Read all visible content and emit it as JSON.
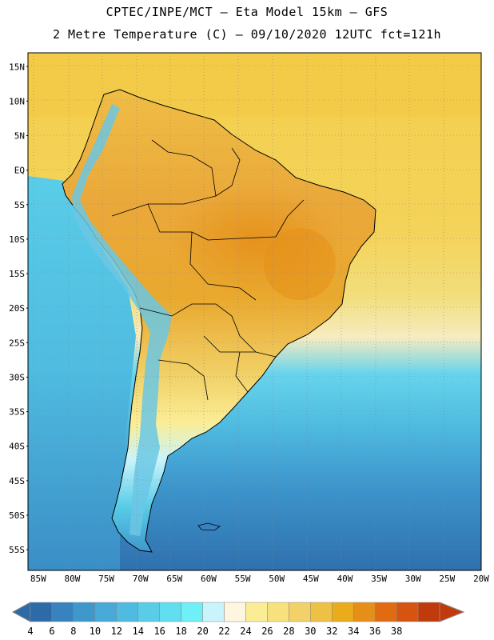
{
  "header": {
    "line1": "CPTEC/INPE/MCT –  Eta Model 15km – GFS",
    "line2": "2 Metre Temperature (C) – 09/10/2020 12UTC fct=121h"
  },
  "map": {
    "lat_labels": [
      "15N",
      "10N",
      "5N",
      "EQ",
      "5S",
      "10S",
      "15S",
      "20S",
      "25S",
      "30S",
      "35S",
      "40S",
      "45S",
      "50S",
      "55S"
    ],
    "lon_labels": [
      "85W",
      "80W",
      "75W",
      "70W",
      "65W",
      "60W",
      "55W",
      "50W",
      "45W",
      "40W",
      "35W",
      "30W",
      "25W",
      "20W"
    ],
    "lat_range": [
      -58,
      17
    ],
    "lon_range": [
      -86.5,
      -20
    ]
  },
  "colorbar": {
    "labels": [
      "4",
      "6",
      "8",
      "10",
      "12",
      "14",
      "16",
      "18",
      "20",
      "22",
      "24",
      "26",
      "28",
      "30",
      "32",
      "34",
      "36",
      "38"
    ],
    "colors": [
      "#2c6aa8",
      "#3683bf",
      "#3f98cc",
      "#47aad8",
      "#4fbbe0",
      "#59cde8",
      "#61def0",
      "#6ff0f7",
      "#c9f4fb",
      "#fff6e0",
      "#fbed96",
      "#f7e17c",
      "#f1d168",
      "#ecc145",
      "#e9ac1c",
      "#e58f18",
      "#e06b10",
      "#d65310",
      "#c03a0c"
    ],
    "low_color": "#2c6aa8",
    "high_color": "#c03a0c"
  },
  "colors": {
    "ocean_warm": "#f4d35a",
    "ocean_mid": "#f0e6a8",
    "ocean_cool": "#4fbbe0",
    "ocean_cold": "#3683bf",
    "land_hot": "#e9a329",
    "land_warm": "#efbf45",
    "highland_cold": "#6bc7e4"
  }
}
